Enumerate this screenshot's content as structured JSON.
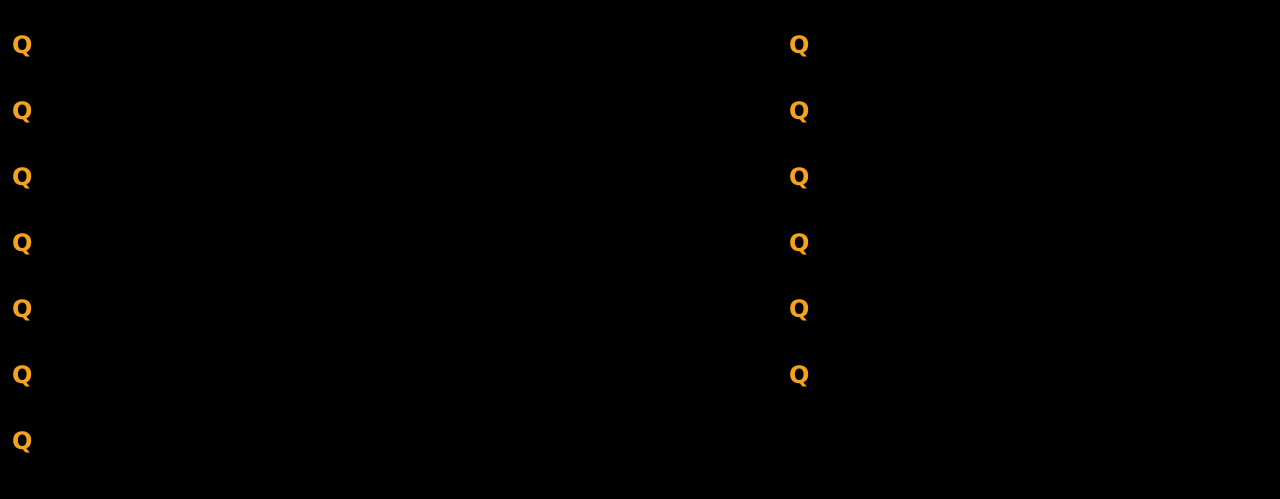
{
  "page": {
    "background_color": "#000000",
    "visible_content_note": "Only orange Q markers are visible; all other text renders black on black"
  },
  "faq": {
    "marker_color": "#F5A31C",
    "left_column": [
      {
        "marker": "Q"
      },
      {
        "marker": "Q"
      },
      {
        "marker": "Q"
      },
      {
        "marker": "Q"
      },
      {
        "marker": "Q"
      },
      {
        "marker": "Q"
      },
      {
        "marker": "Q"
      }
    ],
    "right_column": [
      {
        "marker": "Q"
      },
      {
        "marker": "Q"
      },
      {
        "marker": "Q"
      },
      {
        "marker": "Q"
      },
      {
        "marker": "Q"
      },
      {
        "marker": "Q"
      }
    ]
  }
}
